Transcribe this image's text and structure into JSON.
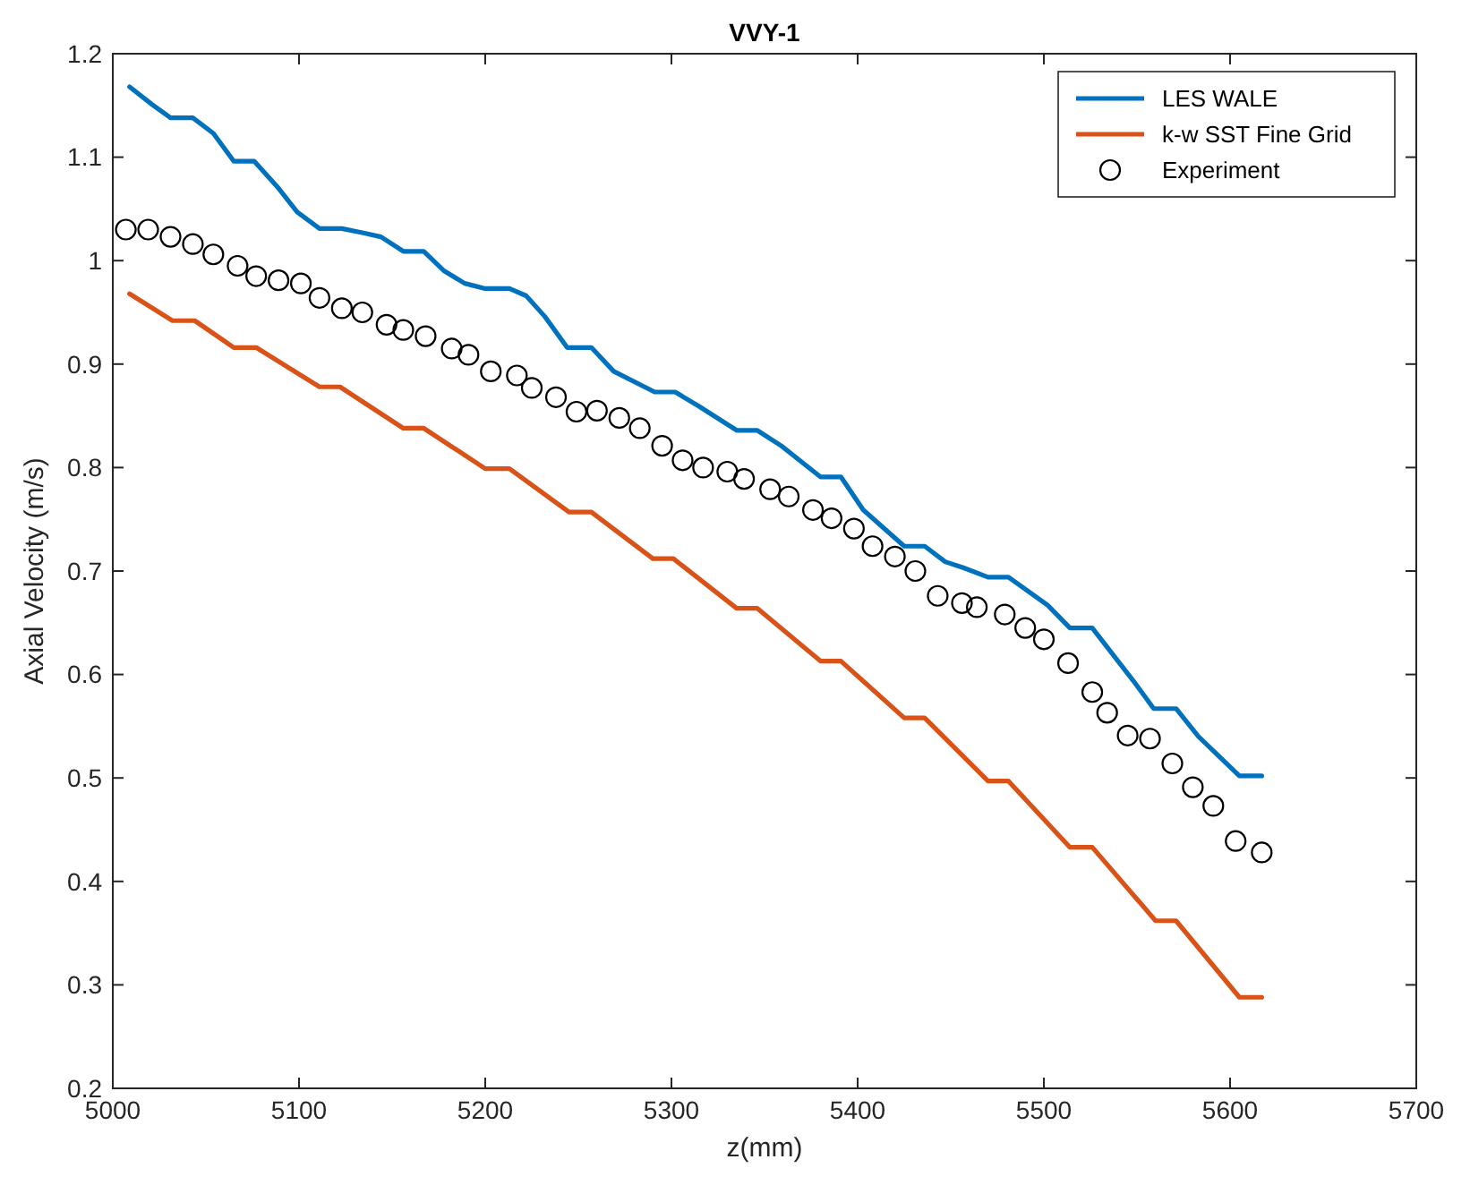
{
  "chart_data": {
    "type": "line",
    "title": "VVY-1",
    "xlabel": "z(mm)",
    "ylabel": "Axial Velocity (m/s)",
    "xlim": [
      5000,
      5700
    ],
    "xticks": [
      5000,
      5100,
      5200,
      5300,
      5400,
      5500,
      5600,
      5700
    ],
    "ylim": [
      0.2,
      1.2
    ],
    "yticks": [
      {
        "value": 0.2,
        "label": "0.2"
      },
      {
        "value": 0.3,
        "label": "0.3"
      },
      {
        "value": 0.4,
        "label": "0.4"
      },
      {
        "value": 0.5,
        "label": "0.5"
      },
      {
        "value": 0.6,
        "label": "0.6"
      },
      {
        "value": 0.7,
        "label": "0.7"
      },
      {
        "value": 0.8,
        "label": "0.8"
      },
      {
        "value": 0.9,
        "label": "0.9"
      },
      {
        "value": 1,
        "label": "1"
      },
      {
        "value": 1.1,
        "label": "1.1"
      },
      {
        "value": 1.2,
        "label": "1.2"
      }
    ],
    "grid": false,
    "legend": "top right",
    "line_style": "solid",
    "series": [
      {
        "name": "LES WALE",
        "color": "#0072bd",
        "marker": "none",
        "x": [
          5009,
          5021,
          5031,
          5043,
          5054,
          5065,
          5076,
          5089,
          5099,
          5111,
          5123,
          5134,
          5144,
          5156,
          5167,
          5178,
          5189,
          5200,
          5213,
          5222,
          5232,
          5244,
          5257,
          5269,
          5291,
          5302,
          5315,
          5335,
          5346,
          5359,
          5380,
          5391,
          5403,
          5425,
          5436,
          5447,
          5457,
          5470,
          5481,
          5502,
          5514,
          5526,
          5548,
          5559,
          5571,
          5583,
          5605,
          5617
        ],
        "values": [
          1.168,
          1.151,
          1.138,
          1.138,
          1.123,
          1.096,
          1.096,
          1.07,
          1.047,
          1.031,
          1.031,
          1.027,
          1.023,
          1.009,
          1.009,
          0.99,
          0.978,
          0.973,
          0.973,
          0.966,
          0.946,
          0.916,
          0.916,
          0.893,
          0.873,
          0.873,
          0.859,
          0.836,
          0.836,
          0.821,
          0.791,
          0.791,
          0.759,
          0.724,
          0.724,
          0.709,
          0.703,
          0.694,
          0.694,
          0.667,
          0.645,
          0.645,
          0.594,
          0.567,
          0.567,
          0.54,
          0.502,
          0.502
        ]
      },
      {
        "name": "k-w SST Fine Grid",
        "color": "#d95319",
        "marker": "none",
        "x": [
          5009,
          5032,
          5044,
          5065,
          5077,
          5111,
          5122,
          5156,
          5167,
          5200,
          5213,
          5245,
          5257,
          5290,
          5301,
          5335,
          5346,
          5380,
          5391,
          5425,
          5436,
          5470,
          5481,
          5514,
          5526,
          5560,
          5571,
          5605,
          5617
        ],
        "values": [
          0.968,
          0.942,
          0.942,
          0.916,
          0.916,
          0.878,
          0.878,
          0.838,
          0.838,
          0.799,
          0.799,
          0.757,
          0.757,
          0.712,
          0.712,
          0.664,
          0.664,
          0.613,
          0.613,
          0.558,
          0.558,
          0.497,
          0.497,
          0.433,
          0.433,
          0.362,
          0.362,
          0.288,
          0.288
        ]
      },
      {
        "name": "Experiment",
        "type": "scatter",
        "color": "#000000",
        "marker": "circle",
        "x": [
          5007,
          5019,
          5031,
          5043,
          5054,
          5067,
          5077,
          5089,
          5101,
          5111,
          5123,
          5134,
          5147,
          5156,
          5168,
          5182,
          5191,
          5203,
          5217,
          5225,
          5238,
          5249,
          5260,
          5272,
          5283,
          5295,
          5306,
          5317,
          5330,
          5339,
          5353,
          5363,
          5376,
          5386,
          5398,
          5408,
          5420,
          5431,
          5443,
          5456,
          5464,
          5479,
          5490,
          5500,
          5513,
          5526,
          5534,
          5545,
          5557,
          5569,
          5580,
          5591,
          5603,
          5617
        ],
        "values": [
          1.03,
          1.03,
          1.023,
          1.016,
          1.006,
          0.995,
          0.985,
          0.981,
          0.978,
          0.964,
          0.954,
          0.95,
          0.938,
          0.933,
          0.927,
          0.915,
          0.909,
          0.893,
          0.889,
          0.877,
          0.868,
          0.854,
          0.855,
          0.848,
          0.838,
          0.821,
          0.807,
          0.8,
          0.796,
          0.789,
          0.779,
          0.772,
          0.759,
          0.751,
          0.741,
          0.724,
          0.714,
          0.7,
          0.676,
          0.669,
          0.665,
          0.658,
          0.645,
          0.634,
          0.611,
          0.583,
          0.563,
          0.541,
          0.538,
          0.514,
          0.491,
          0.473,
          0.439,
          0.428
        ]
      }
    ]
  }
}
